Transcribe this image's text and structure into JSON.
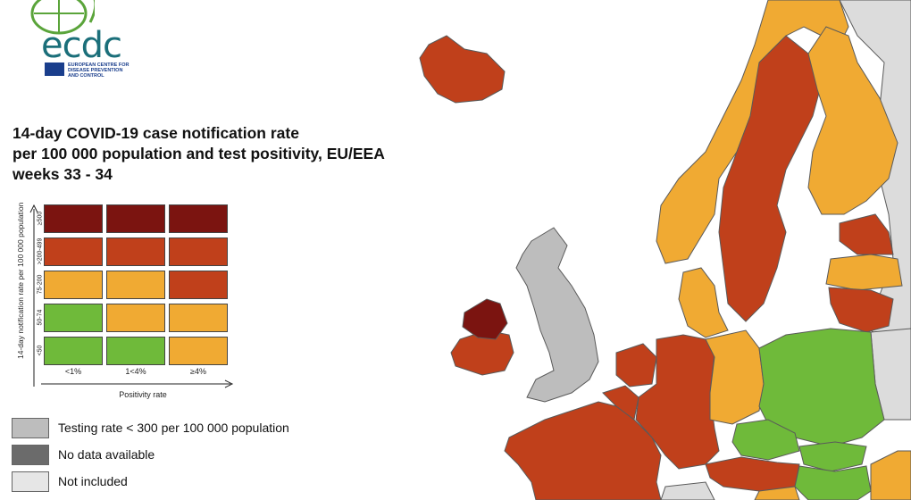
{
  "logo": {
    "text": "ecdc",
    "org_line1": "EUROPEAN CENTRE FOR",
    "org_line2": "DISEASE PREVENTION",
    "org_line3": "AND CONTROL"
  },
  "title": {
    "line1": "14-day COVID-19 case notification rate",
    "line2": "per 100 000 population and test positivity, EU/EEA",
    "line3": "weeks 33 - 34"
  },
  "matrix": {
    "y_axis_label": "14-day notification rate per 100 000 population",
    "x_axis_label": "Positivity rate",
    "rows": [
      "≥500",
      ">200-499",
      "75-200",
      "50-74",
      "<50"
    ],
    "columns": [
      "<1%",
      "1<4%",
      "≥4%"
    ],
    "colors": {
      "dark_red": "#7b1410",
      "red": "#c0401b",
      "orange": "#f0aa33",
      "green": "#6fba3a"
    },
    "cells": [
      [
        "dark_red",
        "dark_red",
        "dark_red"
      ],
      [
        "red",
        "red",
        "red"
      ],
      [
        "orange",
        "orange",
        "red"
      ],
      [
        "green",
        "orange",
        "orange"
      ],
      [
        "green",
        "green",
        "orange"
      ]
    ]
  },
  "legend": [
    {
      "label": "Testing rate < 300 per 100 000 population",
      "color": "#bdbdbd"
    },
    {
      "label": "No data available",
      "color": "#6b6b6b"
    },
    {
      "label": "Not included",
      "color": "#e6e6e6"
    }
  ],
  "map_colors": {
    "sea": "#ffffff",
    "not_included": "#dcdcdc",
    "testing_low": "#bdbdbd",
    "dark_red": "#7b1410",
    "red": "#c0401b",
    "orange": "#f0aa33",
    "green": "#6fba3a",
    "border": "#5a5a5a"
  },
  "regions": [
    {
      "name": "Iceland",
      "color": "red"
    },
    {
      "name": "Norway",
      "color": "orange"
    },
    {
      "name": "Sweden",
      "color": "red"
    },
    {
      "name": "Finland",
      "color": "orange"
    },
    {
      "name": "Russia",
      "color": "not_included"
    },
    {
      "name": "Estonia",
      "color": "red"
    },
    {
      "name": "Latvia",
      "color": "orange"
    },
    {
      "name": "Lithuania",
      "color": "red"
    },
    {
      "name": "Denmark",
      "color": "orange"
    },
    {
      "name": "United Kingdom",
      "color": "testing_low"
    },
    {
      "name": "Ireland",
      "color": "red"
    },
    {
      "name": "Northern Ireland",
      "color": "dark_red"
    },
    {
      "name": "Netherlands",
      "color": "red"
    },
    {
      "name": "Belgium",
      "color": "red"
    },
    {
      "name": "Germany",
      "color": "red"
    },
    {
      "name": "Eastern Germany",
      "color": "orange"
    },
    {
      "name": "Poland",
      "color": "green"
    },
    {
      "name": "Czechia",
      "color": "green"
    },
    {
      "name": "Slovakia",
      "color": "green"
    },
    {
      "name": "Hungary",
      "color": "green"
    },
    {
      "name": "Austria",
      "color": "red"
    },
    {
      "name": "France",
      "color": "red"
    },
    {
      "name": "Belarus",
      "color": "not_included"
    },
    {
      "name": "Romania",
      "color": "orange"
    },
    {
      "name": "Slovenia",
      "color": "orange"
    },
    {
      "name": "Switzerland",
      "color": "not_included"
    }
  ]
}
